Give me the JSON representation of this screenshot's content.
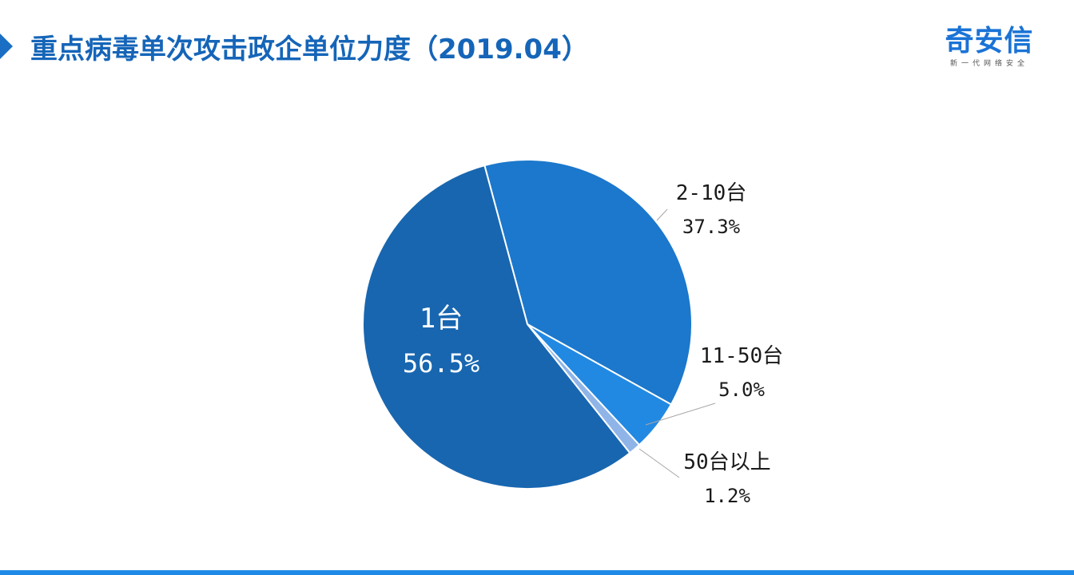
{
  "header": {
    "title": "重点病毒单次攻击政企单位力度（2019.04）"
  },
  "logo": {
    "name": "奇安信",
    "tagline": "新一代网络安全"
  },
  "colors": {
    "title": "#1565b8",
    "accent": "#1f8ae6"
  },
  "chart_data": {
    "type": "pie",
    "title": "",
    "slices": [
      {
        "label": "2-10台",
        "value": 37.3,
        "display": "37.3%",
        "color": "#1b78cc"
      },
      {
        "label": "11-50台",
        "value": 5.0,
        "display": "5.0%",
        "color": "#2289e3"
      },
      {
        "label": "50台以上",
        "value": 1.2,
        "display": "1.2%",
        "color": "#8fb4e8"
      },
      {
        "label": "1台",
        "value": 56.5,
        "display": "56.5%",
        "color": "#1866b0"
      }
    ]
  }
}
